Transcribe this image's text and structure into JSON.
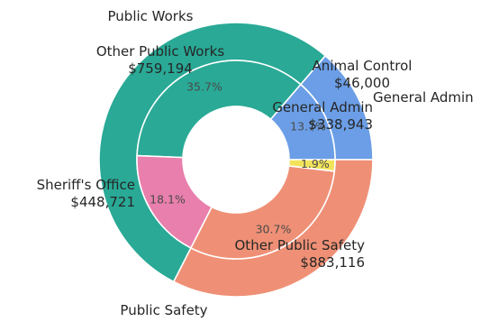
{
  "chart_data": {
    "type": "pie",
    "title": "",
    "rings": [
      {
        "ring": "outer",
        "slices": [
          {
            "label": "General Admin",
            "value": 338943,
            "color": "#6b9ee6"
          },
          {
            "label": "Public Safety",
            "value": 1331837,
            "color": "#29a996"
          },
          {
            "label": "Public Works",
            "value": 805194,
            "color": "#ef9076"
          }
        ]
      },
      {
        "ring": "inner",
        "slices": [
          {
            "label": "General Admin",
            "value_text": "$338,943",
            "value": 338943,
            "percent_text": "13.7%",
            "color": "#6b9ee6"
          },
          {
            "label": "Other Public Safety",
            "value_text": "$883,116",
            "value": 883116,
            "percent_text": "35.7%",
            "color": "#29a996"
          },
          {
            "label": "Sheriff's Office",
            "value_text": "$448,721",
            "value": 448721,
            "percent_text": "18.1%",
            "color": "#e87fac"
          },
          {
            "label": "Other Public Works",
            "value_text": "$759,194",
            "value": 759194,
            "percent_text": "30.7%",
            "color": "#ef9076"
          },
          {
            "label": "Animal Control",
            "value_text": "$46,000",
            "value": 46000,
            "percent_text": "1.9%",
            "color": "#f2e35a"
          }
        ]
      }
    ],
    "legend": "none"
  }
}
